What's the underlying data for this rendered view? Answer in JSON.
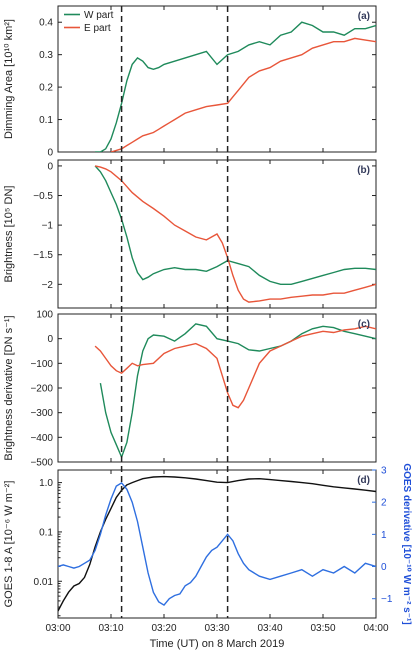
{
  "colors": {
    "w_part": "#1f8a5b",
    "e_part": "#e8563a",
    "goes_flux": "#111111",
    "goes_derivative": "#2f6fe0",
    "vline": "#222222"
  },
  "chart_data": [
    {
      "type": "line",
      "panel_label": "(a)",
      "ylabel": "Dimming Area [10¹⁰ km²]",
      "xlim": [
        0,
        60
      ],
      "ylim": [
        0,
        0.45
      ],
      "yticks": [
        0,
        0.1,
        0.2,
        0.3,
        0.4
      ],
      "ytick_labels": [
        "0",
        "0.1",
        "0.2",
        "0.3",
        "0.4"
      ],
      "legend": {
        "position": "top-left",
        "entries": [
          "W part",
          "E part"
        ]
      },
      "series": [
        {
          "name": "W part",
          "color": "#1f8a5b",
          "x": [
            7,
            8,
            9,
            10,
            11,
            12,
            13,
            14,
            15,
            16,
            17,
            18,
            19,
            20,
            22,
            24,
            26,
            28,
            30,
            32,
            34,
            36,
            38,
            40,
            42,
            44,
            46,
            48,
            50,
            52,
            54,
            56,
            58,
            60
          ],
          "y": [
            0,
            0,
            0.01,
            0.04,
            0.09,
            0.15,
            0.22,
            0.27,
            0.29,
            0.28,
            0.26,
            0.255,
            0.26,
            0.27,
            0.28,
            0.29,
            0.3,
            0.31,
            0.27,
            0.3,
            0.31,
            0.33,
            0.34,
            0.33,
            0.36,
            0.37,
            0.4,
            0.39,
            0.37,
            0.37,
            0.36,
            0.38,
            0.38,
            0.39
          ]
        },
        {
          "name": "E part",
          "color": "#e8563a",
          "x": [
            10,
            11,
            12,
            13,
            14,
            15,
            16,
            17,
            18,
            19,
            20,
            21,
            22,
            24,
            26,
            28,
            30,
            32,
            33,
            34,
            35,
            36,
            38,
            40,
            42,
            44,
            46,
            48,
            50,
            52,
            54,
            56,
            58,
            60
          ],
          "y": [
            0,
            0.005,
            0.01,
            0.02,
            0.03,
            0.04,
            0.05,
            0.055,
            0.06,
            0.07,
            0.08,
            0.09,
            0.1,
            0.12,
            0.13,
            0.14,
            0.145,
            0.15,
            0.17,
            0.19,
            0.21,
            0.23,
            0.25,
            0.26,
            0.28,
            0.29,
            0.3,
            0.32,
            0.33,
            0.34,
            0.34,
            0.35,
            0.345,
            0.34
          ]
        }
      ]
    },
    {
      "type": "line",
      "panel_label": "(b)",
      "ylabel": "Brightness [10⁵ DN]",
      "xlim": [
        0,
        60
      ],
      "ylim": [
        -2.4,
        0.1
      ],
      "yticks": [
        0,
        -0.5,
        -1,
        -1.5,
        -2
      ],
      "ytick_labels": [
        "0",
        "−0.5",
        "−1",
        "−1.5",
        "−2"
      ],
      "series": [
        {
          "name": "W part",
          "color": "#1f8a5b",
          "x": [
            7,
            8,
            9,
            10,
            11,
            12,
            13,
            14,
            15,
            16,
            17,
            18,
            20,
            22,
            24,
            26,
            28,
            30,
            32,
            34,
            36,
            38,
            40,
            42,
            44,
            46,
            48,
            50,
            52,
            54,
            56,
            58,
            60
          ],
          "y": [
            0,
            -0.1,
            -0.25,
            -0.45,
            -0.65,
            -0.9,
            -1.2,
            -1.55,
            -1.8,
            -1.92,
            -1.88,
            -1.82,
            -1.75,
            -1.72,
            -1.75,
            -1.75,
            -1.78,
            -1.7,
            -1.6,
            -1.65,
            -1.7,
            -1.85,
            -1.95,
            -2.0,
            -2.0,
            -1.95,
            -1.9,
            -1.85,
            -1.8,
            -1.75,
            -1.73,
            -1.73,
            -1.75
          ]
        },
        {
          "name": "E part",
          "color": "#e8563a",
          "x": [
            7,
            8,
            9,
            10,
            12,
            14,
            16,
            18,
            20,
            22,
            24,
            26,
            28,
            30,
            31,
            32,
            33,
            34,
            35,
            36,
            38,
            40,
            42,
            44,
            46,
            48,
            50,
            52,
            54,
            56,
            58,
            60
          ],
          "y": [
            0,
            -0.02,
            -0.05,
            -0.1,
            -0.25,
            -0.45,
            -0.6,
            -0.72,
            -0.85,
            -1.0,
            -1.1,
            -1.2,
            -1.25,
            -1.15,
            -1.3,
            -1.55,
            -1.85,
            -2.1,
            -2.25,
            -2.3,
            -2.28,
            -2.25,
            -2.25,
            -2.22,
            -2.2,
            -2.18,
            -2.18,
            -2.15,
            -2.15,
            -2.1,
            -2.05,
            -2.0
          ]
        }
      ]
    },
    {
      "type": "line",
      "panel_label": "(c)",
      "ylabel": "Brightness derivative [DN s⁻¹]",
      "xlim": [
        0,
        60
      ],
      "ylim": [
        -500,
        100
      ],
      "yticks": [
        100,
        0,
        -100,
        -200,
        -300,
        -400,
        -500
      ],
      "ytick_labels": [
        "100",
        "0",
        "−100",
        "−200",
        "−300",
        "−400",
        "−500"
      ],
      "series": [
        {
          "name": "W part",
          "color": "#1f8a5b",
          "x": [
            8,
            9,
            10,
            11,
            12,
            13,
            14,
            15,
            16,
            17,
            18,
            20,
            22,
            24,
            26,
            28,
            30,
            32,
            34,
            36,
            38,
            40,
            42,
            44,
            46,
            48,
            50,
            52,
            54,
            56,
            58,
            60
          ],
          "y": [
            -180,
            -300,
            -380,
            -430,
            -480,
            -420,
            -300,
            -150,
            -50,
            0,
            15,
            10,
            -10,
            20,
            60,
            50,
            0,
            -10,
            -20,
            -45,
            -50,
            -40,
            -30,
            -10,
            20,
            40,
            50,
            45,
            30,
            20,
            10,
            0
          ]
        },
        {
          "name": "E part",
          "color": "#e8563a",
          "x": [
            7,
            8,
            9,
            10,
            11,
            12,
            13,
            14,
            15,
            16,
            18,
            20,
            22,
            24,
            26,
            28,
            30,
            31,
            32,
            33,
            34,
            35,
            36,
            38,
            40,
            42,
            44,
            46,
            48,
            50,
            52,
            54,
            56,
            58,
            60
          ],
          "y": [
            -30,
            -50,
            -80,
            -110,
            -130,
            -140,
            -120,
            -100,
            -110,
            -105,
            -100,
            -60,
            -40,
            -30,
            -20,
            -40,
            -80,
            -150,
            -220,
            -270,
            -280,
            -250,
            -200,
            -100,
            -50,
            -30,
            -10,
            10,
            20,
            30,
            25,
            35,
            40,
            50,
            40
          ]
        }
      ]
    },
    {
      "type": "line",
      "panel_label": "(d)",
      "ylabel": "GOES 1-8 A [10⁻⁶ W m⁻²]",
      "y2label": "GOES derivative [10⁻¹⁰ W m⁻² s⁻¹]",
      "xlabel": "Time (UT) on 8 March 2019",
      "xlim": [
        0,
        60
      ],
      "xticks": [
        0,
        10,
        20,
        30,
        40,
        50,
        60
      ],
      "xtick_labels": [
        "03:00",
        "03:10",
        "03:20",
        "03:30",
        "03:40",
        "03:50",
        "04:00"
      ],
      "yscale": "log",
      "ylim": [
        0.0018,
        1.8
      ],
      "yticks": [
        1.0,
        0.1,
        0.01
      ],
      "ytick_labels": [
        "1.0",
        "0.1",
        "0.01"
      ],
      "y2lim": [
        -1.6,
        3
      ],
      "y2ticks": [
        3,
        2,
        1,
        0,
        -1
      ],
      "y2tick_labels": [
        "3",
        "2",
        "1",
        "0",
        "−1"
      ],
      "vlines_x": [
        12,
        32
      ],
      "series": [
        {
          "name": "GOES 1-8 A",
          "color": "#111111",
          "axis": "left",
          "x": [
            0,
            1,
            2,
            3,
            4,
            5,
            6,
            7,
            8,
            9,
            10,
            11,
            12,
            13,
            14,
            15,
            16,
            17,
            18,
            20,
            22,
            24,
            26,
            28,
            30,
            32,
            34,
            36,
            38,
            40,
            42,
            44,
            46,
            48,
            50,
            52,
            54,
            56,
            58,
            60
          ],
          "y": [
            0.0025,
            0.004,
            0.006,
            0.008,
            0.009,
            0.012,
            0.022,
            0.05,
            0.1,
            0.18,
            0.3,
            0.5,
            0.7,
            0.9,
            1.0,
            1.1,
            1.2,
            1.25,
            1.3,
            1.32,
            1.3,
            1.25,
            1.18,
            1.1,
            1.02,
            1.0,
            1.1,
            1.18,
            1.2,
            1.15,
            1.1,
            1.05,
            1.0,
            0.95,
            0.88,
            0.82,
            0.78,
            0.74,
            0.7,
            0.66
          ]
        },
        {
          "name": "GOES derivative",
          "color": "#2f6fe0",
          "axis": "right",
          "x": [
            0,
            1,
            2,
            3,
            4,
            5,
            6,
            7,
            8,
            9,
            10,
            11,
            12,
            13,
            14,
            15,
            16,
            17,
            18,
            19,
            20,
            21,
            22,
            23,
            24,
            25,
            26,
            27,
            28,
            29,
            30,
            31,
            32,
            33,
            34,
            35,
            36,
            38,
            40,
            42,
            44,
            46,
            48,
            50,
            52,
            54,
            56,
            58,
            60
          ],
          "y": [
            0.0,
            0.05,
            0.0,
            -0.05,
            0.0,
            0.1,
            0.2,
            0.5,
            1.0,
            1.6,
            2.1,
            2.5,
            2.6,
            2.4,
            2.0,
            1.4,
            0.6,
            -0.2,
            -0.8,
            -1.1,
            -1.2,
            -1.0,
            -0.9,
            -0.85,
            -0.6,
            -0.5,
            -0.3,
            0.0,
            0.3,
            0.5,
            0.6,
            0.8,
            1.0,
            0.8,
            0.4,
            0.1,
            -0.1,
            -0.3,
            -0.4,
            -0.3,
            -0.2,
            -0.1,
            -0.3,
            -0.1,
            -0.2,
            0.0,
            -0.2,
            0.1,
            0.0
          ]
        }
      ]
    }
  ]
}
